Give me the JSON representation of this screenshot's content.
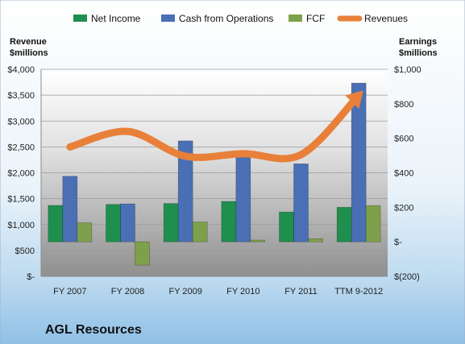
{
  "chart_data": {
    "type": "bar",
    "title": "AGL Resources",
    "left_axis_label": [
      "Revenue",
      "$millions"
    ],
    "right_axis_label": [
      "Earnings",
      "$millions"
    ],
    "categories": [
      "FY 2007",
      "FY 2008",
      "FY 2009",
      "FY 2010",
      "FY 2011",
      "TTM 9-2012"
    ],
    "left_ticks": [
      "$-",
      "$500",
      "$1,000",
      "$1,500",
      "$2,000",
      "$2,500",
      "$3,000",
      "$3,500",
      "$4,000"
    ],
    "right_ticks": [
      "$(200)",
      "$-",
      "$200",
      "$400",
      "$600",
      "$800",
      "$1,000"
    ],
    "ylim_left": [
      0,
      4000
    ],
    "ylim_right": [
      -200,
      1000
    ],
    "series": [
      {
        "name": "Net Income",
        "axis": "right",
        "kind": "bar",
        "color": "#1f8f4e",
        "values": [
          211,
          217,
          222,
          234,
          173,
          200
        ]
      },
      {
        "name": "Cash from Operations",
        "axis": "right",
        "kind": "bar",
        "color": "#4a6fb5",
        "values": [
          380,
          220,
          585,
          525,
          452,
          920
        ]
      },
      {
        "name": "FCF",
        "axis": "right",
        "kind": "bar",
        "color": "#7ea04a",
        "values": [
          110,
          -135,
          115,
          10,
          18,
          210
        ]
      },
      {
        "name": "Revenues",
        "axis": "left",
        "kind": "line",
        "color": "#e8803a",
        "values": [
          2500,
          2800,
          2320,
          2370,
          2350,
          3500
        ]
      }
    ],
    "grid": true,
    "legend_position": "top"
  }
}
